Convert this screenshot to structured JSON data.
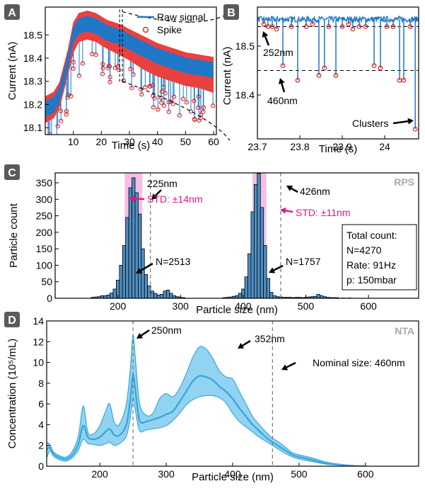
{
  "chart_data": [
    {
      "panel": "A",
      "type": "line",
      "xlabel": "Time (s)",
      "ylabel": "Current (nA)",
      "xlim": [
        0,
        61
      ],
      "ylim": [
        18.07,
        18.62
      ],
      "xticks": [
        10,
        20,
        30,
        40,
        50,
        60
      ],
      "yticks": [
        18.1,
        18.2,
        18.3,
        18.4,
        18.5
      ],
      "legend": {
        "position": "top-right",
        "entries": [
          "Raw signal",
          "Spike"
        ]
      },
      "series": [
        {
          "name": "Raw signal",
          "color": "#1f77c8",
          "x": [
            0,
            3,
            5,
            8,
            10,
            12,
            15,
            18,
            22,
            27,
            30,
            35,
            40,
            45,
            50,
            55,
            60
          ],
          "y": [
            18.2,
            18.22,
            18.26,
            18.4,
            18.52,
            18.56,
            18.57,
            18.56,
            18.53,
            18.51,
            18.49,
            18.46,
            18.43,
            18.41,
            18.39,
            18.38,
            18.37
          ]
        },
        {
          "name": "Spike",
          "color": "#e01010",
          "x": [
            0,
            3,
            5,
            8,
            10,
            12,
            15,
            18,
            22,
            27,
            30,
            35,
            40,
            45,
            50,
            55,
            60
          ],
          "y": [
            18.12,
            18.14,
            18.18,
            18.32,
            18.42,
            18.47,
            18.48,
            18.47,
            18.44,
            18.41,
            18.39,
            18.35,
            18.32,
            18.3,
            18.28,
            18.27,
            18.25
          ]
        }
      ]
    },
    {
      "panel": "B",
      "type": "line",
      "xlabel": "Time (s)",
      "ylabel": "Current (nA)",
      "xlim": [
        23.7,
        24.08
      ],
      "ylim": [
        18.31,
        18.58
      ],
      "xticks": [
        23.7,
        23.8,
        23.9,
        24.0
      ],
      "yticks": [
        18.4,
        18.5
      ],
      "baseline": 18.555,
      "reference_lines": [
        {
          "label": "252nm",
          "y": 18.54
        },
        {
          "label": "460nm",
          "y": 18.45
        }
      ],
      "annotations": [
        "252nm",
        "460nm",
        "Clusters"
      ],
      "spikes": [
        {
          "x": 23.715,
          "y": 18.545
        },
        {
          "x": 23.725,
          "y": 18.54
        },
        {
          "x": 23.735,
          "y": 18.54
        },
        {
          "x": 23.745,
          "y": 18.535
        },
        {
          "x": 23.76,
          "y": 18.46
        },
        {
          "x": 23.78,
          "y": 18.54
        },
        {
          "x": 23.795,
          "y": 18.43
        },
        {
          "x": 23.815,
          "y": 18.54
        },
        {
          "x": 23.83,
          "y": 18.545
        },
        {
          "x": 23.845,
          "y": 18.44
        },
        {
          "x": 23.858,
          "y": 18.455
        },
        {
          "x": 23.868,
          "y": 18.54
        },
        {
          "x": 23.885,
          "y": 18.44
        },
        {
          "x": 23.9,
          "y": 18.54
        },
        {
          "x": 23.915,
          "y": 18.545
        },
        {
          "x": 23.925,
          "y": 18.535
        },
        {
          "x": 23.94,
          "y": 18.54
        },
        {
          "x": 23.955,
          "y": 18.54
        },
        {
          "x": 23.975,
          "y": 18.46
        },
        {
          "x": 23.99,
          "y": 18.455
        },
        {
          "x": 24.005,
          "y": 18.54
        },
        {
          "x": 24.02,
          "y": 18.54
        },
        {
          "x": 24.035,
          "y": 18.43
        },
        {
          "x": 24.045,
          "y": 18.43
        },
        {
          "x": 24.06,
          "y": 18.54
        },
        {
          "x": 24.072,
          "y": 18.33
        }
      ]
    },
    {
      "panel": "C",
      "type": "bar",
      "tag": "RPS",
      "xlabel": "Particle size (nm)",
      "ylabel": "Particle count",
      "xlim": [
        100,
        680
      ],
      "ylim": [
        0,
        380
      ],
      "xticks": [
        200,
        300,
        400,
        500,
        600
      ],
      "yticks": [
        0,
        50,
        100,
        150,
        200,
        250,
        300,
        350
      ],
      "bin_width": 5,
      "bins": [
        {
          "x": 160,
          "v": 3
        },
        {
          "x": 165,
          "v": 4
        },
        {
          "x": 170,
          "v": 5
        },
        {
          "x": 175,
          "v": 8
        },
        {
          "x": 180,
          "v": 8
        },
        {
          "x": 185,
          "v": 10
        },
        {
          "x": 190,
          "v": 16
        },
        {
          "x": 195,
          "v": 28
        },
        {
          "x": 200,
          "v": 55
        },
        {
          "x": 205,
          "v": 100
        },
        {
          "x": 210,
          "v": 160
        },
        {
          "x": 215,
          "v": 245
        },
        {
          "x": 220,
          "v": 335
        },
        {
          "x": 225,
          "v": 365
        },
        {
          "x": 230,
          "v": 320
        },
        {
          "x": 235,
          "v": 255
        },
        {
          "x": 240,
          "v": 150
        },
        {
          "x": 245,
          "v": 72
        },
        {
          "x": 250,
          "v": 38
        },
        {
          "x": 255,
          "v": 22
        },
        {
          "x": 260,
          "v": 15
        },
        {
          "x": 265,
          "v": 10
        },
        {
          "x": 270,
          "v": 12
        },
        {
          "x": 275,
          "v": 22
        },
        {
          "x": 280,
          "v": 25
        },
        {
          "x": 285,
          "v": 15
        },
        {
          "x": 290,
          "v": 8
        },
        {
          "x": 295,
          "v": 5
        },
        {
          "x": 300,
          "v": 3
        },
        {
          "x": 305,
          "v": 2
        },
        {
          "x": 370,
          "v": 2
        },
        {
          "x": 375,
          "v": 3
        },
        {
          "x": 380,
          "v": 4
        },
        {
          "x": 385,
          "v": 6
        },
        {
          "x": 390,
          "v": 8
        },
        {
          "x": 395,
          "v": 15
        },
        {
          "x": 400,
          "v": 28
        },
        {
          "x": 405,
          "v": 65
        },
        {
          "x": 410,
          "v": 135
        },
        {
          "x": 415,
          "v": 262
        },
        {
          "x": 420,
          "v": 345
        },
        {
          "x": 425,
          "v": 378
        },
        {
          "x": 430,
          "v": 275
        },
        {
          "x": 435,
          "v": 160
        },
        {
          "x": 440,
          "v": 60
        },
        {
          "x": 445,
          "v": 18
        },
        {
          "x": 450,
          "v": 8
        },
        {
          "x": 455,
          "v": 5
        },
        {
          "x": 460,
          "v": 4
        },
        {
          "x": 465,
          "v": 3
        },
        {
          "x": 470,
          "v": 3
        },
        {
          "x": 475,
          "v": 3
        },
        {
          "x": 480,
          "v": 2
        },
        {
          "x": 485,
          "v": 3
        },
        {
          "x": 490,
          "v": 3
        },
        {
          "x": 495,
          "v": 2
        },
        {
          "x": 500,
          "v": 3
        },
        {
          "x": 505,
          "v": 4
        },
        {
          "x": 510,
          "v": 5
        },
        {
          "x": 515,
          "v": 6
        },
        {
          "x": 520,
          "v": 12
        },
        {
          "x": 525,
          "v": 8
        },
        {
          "x": 530,
          "v": 5
        },
        {
          "x": 535,
          "v": 3
        },
        {
          "x": 540,
          "v": 2
        },
        {
          "x": 545,
          "v": 2
        },
        {
          "x": 550,
          "v": 2
        },
        {
          "x": 560,
          "v": 1
        },
        {
          "x": 570,
          "v": 1
        }
      ],
      "std_bands": [
        {
          "center": 225,
          "std": 14
        },
        {
          "center": 426,
          "std": 11
        }
      ],
      "dashed_lines": [
        252,
        460
      ],
      "annotations": [
        {
          "text": "225nm",
          "at": 225,
          "color": "#000000"
        },
        {
          "text": "STD: ±14nm",
          "at": 225,
          "color": "#e0198c"
        },
        {
          "text": "N=2513",
          "at": 245,
          "color": "#000000"
        },
        {
          "text": "426nm",
          "at": 426,
          "color": "#000000"
        },
        {
          "text": "STD: ±11nm",
          "at": 426,
          "color": "#e0198c"
        },
        {
          "text": "N=1757",
          "at": 440,
          "color": "#000000"
        }
      ],
      "info_box": [
        "Total count:",
        "N=4270",
        "Rate: 91Hz",
        "p: 150mbar"
      ]
    },
    {
      "panel": "D",
      "type": "area",
      "tag": "NTA",
      "xlabel": "Particle size (nm)",
      "ylabel": "Concentration (10⁵/mL)",
      "xlim": [
        120,
        680
      ],
      "ylim": [
        0,
        14
      ],
      "xticks": [
        200,
        300,
        400,
        500,
        600
      ],
      "yticks": [
        0,
        2,
        4,
        6,
        8,
        10,
        12,
        14
      ],
      "dashed_lines": [
        250,
        460
      ],
      "annotations": [
        {
          "text": "250nm",
          "at": 250
        },
        {
          "text": "352nm",
          "at": 352
        },
        {
          "text": "Nominal size: 460nm",
          "at": 460
        }
      ],
      "series": [
        {
          "name": "mean",
          "color": "#3ba8dc",
          "x": [
            120,
            125,
            130,
            140,
            150,
            160,
            168,
            175,
            182,
            190,
            200,
            210,
            215,
            222,
            230,
            240,
            246,
            250,
            254,
            260,
            270,
            280,
            290,
            300,
            310,
            320,
            330,
            340,
            350,
            360,
            370,
            380,
            390,
            400,
            410,
            420,
            430,
            440,
            450,
            460,
            470,
            480,
            490,
            500,
            520,
            540,
            560,
            580,
            600
          ],
          "y": [
            1.6,
            1.8,
            1.2,
            0.8,
            0.7,
            1.2,
            2.2,
            3.9,
            2.8,
            2.6,
            2.8,
            3.4,
            3.6,
            3.0,
            3.0,
            4.0,
            6.5,
            8.8,
            7.0,
            4.4,
            4.3,
            4.5,
            4.7,
            5.0,
            5.3,
            6.2,
            7.2,
            8.2,
            8.7,
            8.6,
            8.3,
            7.7,
            7.2,
            6.5,
            5.6,
            4.8,
            4.0,
            3.4,
            2.8,
            2.3,
            1.9,
            1.5,
            1.1,
            0.9,
            0.6,
            0.3,
            0.15,
            0.05,
            0.0
          ]
        },
        {
          "name": "upper",
          "color": "#3ba8dc",
          "x": [
            120,
            125,
            130,
            140,
            150,
            160,
            168,
            175,
            182,
            190,
            200,
            210,
            215,
            222,
            230,
            240,
            246,
            250,
            254,
            260,
            270,
            280,
            290,
            300,
            310,
            320,
            330,
            340,
            350,
            360,
            370,
            380,
            390,
            400,
            410,
            420,
            430,
            440,
            450,
            460,
            470,
            480,
            490,
            500,
            520,
            540,
            560,
            580,
            600
          ],
          "y": [
            2.3,
            2.1,
            1.4,
            1.0,
            0.9,
            1.6,
            3.0,
            5.8,
            3.3,
            3.1,
            3.9,
            5.5,
            6.0,
            4.2,
            4.1,
            6.0,
            9.5,
            12.6,
            10.0,
            6.0,
            4.9,
            5.1,
            6.5,
            7.0,
            6.7,
            7.5,
            8.9,
            10.5,
            11.5,
            11.3,
            10.4,
            9.2,
            8.6,
            8.4,
            7.2,
            6.0,
            4.8,
            4.0,
            3.3,
            2.7,
            2.3,
            1.8,
            1.3,
            1.1,
            0.8,
            0.4,
            0.2,
            0.07,
            0.0
          ]
        },
        {
          "name": "lower",
          "color": "#3ba8dc",
          "x": [
            120,
            125,
            130,
            140,
            150,
            160,
            168,
            175,
            182,
            190,
            200,
            210,
            215,
            222,
            230,
            240,
            246,
            250,
            254,
            260,
            270,
            280,
            290,
            300,
            310,
            320,
            330,
            340,
            350,
            360,
            370,
            380,
            390,
            400,
            410,
            420,
            430,
            440,
            450,
            460,
            470,
            480,
            490,
            500,
            520,
            540,
            560,
            580,
            600
          ],
          "y": [
            0.8,
            1.5,
            1.0,
            0.6,
            0.5,
            0.9,
            1.6,
            2.6,
            2.2,
            2.1,
            2.0,
            2.2,
            2.3,
            2.0,
            2.2,
            2.9,
            4.7,
            6.5,
            5.2,
            3.4,
            3.5,
            3.6,
            3.7,
            3.9,
            4.4,
            5.1,
            5.9,
            6.4,
            6.7,
            6.8,
            6.8,
            6.6,
            6.1,
            5.1,
            4.3,
            3.8,
            3.3,
            2.8,
            2.4,
            2.0,
            1.6,
            1.2,
            0.9,
            0.7,
            0.45,
            0.2,
            0.1,
            0.03,
            0.0
          ]
        }
      ]
    }
  ],
  "panel_labels": [
    "A",
    "B",
    "C",
    "D"
  ],
  "colors": {
    "signal": "#1f77c8",
    "spike": "#e01010",
    "bar": "#4f8fc4",
    "std_band": "#f2a8d8",
    "nta": "#3ba8dc",
    "tag": "#a9a9a9",
    "panel_label_bg": "#5a5a5a"
  }
}
